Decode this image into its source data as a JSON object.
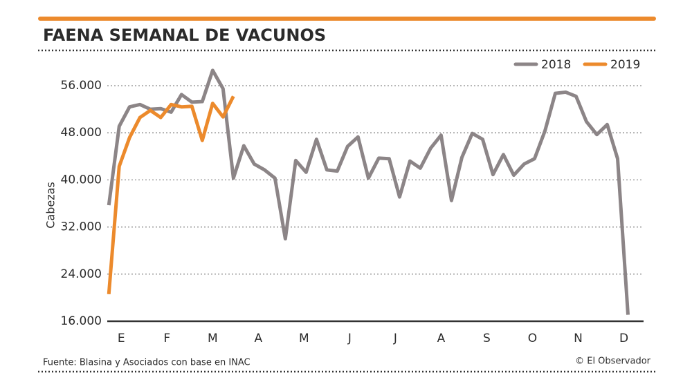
{
  "chart_data": {
    "type": "line",
    "title": "FAENA SEMANAL DE VACUNOS",
    "y_label": "Cabezas",
    "source": "Fuente: Blasina y Asociados con base en INAC",
    "credit": "© El Observador",
    "xlim": [
      0.85,
      52.5
    ],
    "xticks": [
      {
        "value": 2.2,
        "label": "E"
      },
      {
        "value": 6.6,
        "label": "F"
      },
      {
        "value": 11,
        "label": "M"
      },
      {
        "value": 15.4,
        "label": "A"
      },
      {
        "value": 19.8,
        "label": "M"
      },
      {
        "value": 24.2,
        "label": "J"
      },
      {
        "value": 28.6,
        "label": "J"
      },
      {
        "value": 33,
        "label": "A"
      },
      {
        "value": 37.4,
        "label": "S"
      },
      {
        "value": 41.8,
        "label": "O"
      },
      {
        "value": 46.2,
        "label": "N"
      },
      {
        "value": 50.6,
        "label": "D"
      }
    ],
    "ylim": [
      16000,
      58000
    ],
    "yticks": [
      {
        "value": 16000,
        "label": "16.000"
      },
      {
        "value": 24000,
        "label": "24.000"
      },
      {
        "value": 32000,
        "label": "32.000"
      },
      {
        "value": 40000,
        "label": "40.000"
      },
      {
        "value": 48000,
        "label": "48.000"
      },
      {
        "value": 56000,
        "label": "56.000"
      }
    ],
    "grid": true,
    "legend": "top-right",
    "series": [
      {
        "name": "2018",
        "color": "#8c8587",
        "x": [
          1,
          2,
          3,
          4,
          5,
          6,
          7,
          8,
          9,
          10,
          11,
          12,
          13,
          14,
          15,
          16,
          17,
          18,
          19,
          20,
          21,
          22,
          23,
          24,
          25,
          26,
          27,
          28,
          29,
          30,
          31,
          32,
          33,
          34,
          35,
          36,
          37,
          38,
          39,
          40,
          41,
          42,
          43,
          44,
          45,
          46,
          47,
          48,
          49,
          50,
          51
        ],
        "values": [
          35700,
          49100,
          52400,
          52800,
          52000,
          52100,
          51500,
          54500,
          53200,
          53300,
          58600,
          55500,
          40300,
          45800,
          42700,
          41700,
          40300,
          30000,
          43300,
          41300,
          46900,
          41700,
          41500,
          45700,
          47300,
          40300,
          43700,
          43600,
          37100,
          43200,
          42000,
          45400,
          47600,
          36500,
          43800,
          47900,
          46900,
          40900,
          44300,
          40800,
          42700,
          43600,
          48300,
          54700,
          54900,
          54200,
          49900,
          47700,
          49400,
          43600,
          17100
        ]
      },
      {
        "name": "2019",
        "color": "#ec8a2c",
        "x": [
          1,
          2,
          3,
          4,
          5,
          6,
          7,
          8,
          9,
          10,
          11,
          12,
          13
        ],
        "values": [
          20600,
          42300,
          47200,
          50600,
          51800,
          50600,
          52800,
          52400,
          52500,
          46700,
          53000,
          50700,
          54200
        ]
      }
    ]
  }
}
